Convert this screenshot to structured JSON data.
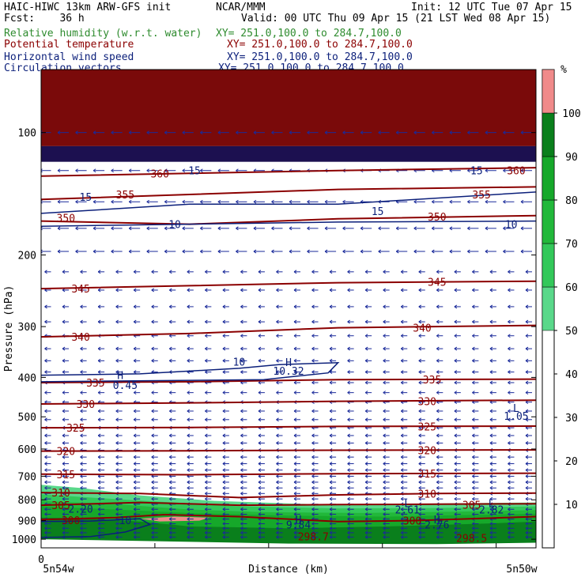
{
  "header": {
    "line1_left": "HAIC-HIWC 13km ARW-GFS init",
    "line1_mid": "NCAR/MMM",
    "line1_right": "Init: 12 UTC Tue 07 Apr 15",
    "line2_left": "Fcst:    36 h",
    "line2_right": "Valid: 00 UTC Thu 09 Apr 15 (21 LST Wed 08 Apr 15)",
    "fields": [
      {
        "name": "Relative humidity (w.r.t. water)",
        "xy": "XY= 251.0,100.0 to 284.7,100.0",
        "color": "#2e8b2e"
      },
      {
        "name": "Potential temperature",
        "xy": "XY= 251.0,100.0 to 284.7,100.0",
        "color": "#8b0000"
      },
      {
        "name": "Horizontal wind speed",
        "xy": "XY= 251.0,100.0 to 284.7,100.0",
        "color": "#0b1f7a"
      },
      {
        "name": "Circulation vectors",
        "xy": "XY= 251.0,100.0 to 284.7,100.0",
        "color": "#0b1f7a"
      }
    ]
  },
  "chart_data": {
    "type": "cross-section",
    "ylabel": "Pressure (hPa)",
    "xlabel": "Distance (km)",
    "x_tick_label": "0",
    "x_left_label": "5n54w",
    "x_right_label": "5n50w",
    "y_ticks": [
      100,
      200,
      300,
      400,
      500,
      600,
      700,
      800,
      900,
      1000
    ],
    "y_scale": "log",
    "ylim": [
      1050,
      70
    ],
    "x_range": [
      0,
      100
    ],
    "colorbar": {
      "unit": "%",
      "ticks": [
        10,
        20,
        30,
        40,
        50,
        60,
        70,
        80,
        90,
        100
      ],
      "bands": [
        {
          "from": 50,
          "to": 60,
          "color": "#5ad88a"
        },
        {
          "from": 60,
          "to": 70,
          "color": "#33c85a"
        },
        {
          "from": 70,
          "to": 80,
          "color": "#22b83a"
        },
        {
          "from": 80,
          "to": 90,
          "color": "#16a82a"
        },
        {
          "from": 90,
          "to": 100,
          "color": "#0a7f1c"
        },
        {
          "from": 100,
          "to": 110,
          "color": "#f08a8a"
        }
      ]
    },
    "theta_contours": [
      {
        "label": "305",
        "points": [
          [
            0,
            825
          ],
          [
            20,
            812
          ],
          [
            40,
            825
          ],
          [
            60,
            822
          ],
          [
            80,
            820
          ],
          [
            100,
            818
          ]
        ]
      },
      {
        "label": "310",
        "points": [
          [
            0,
            768
          ],
          [
            20,
            772
          ],
          [
            40,
            790
          ],
          [
            60,
            778
          ],
          [
            80,
            772
          ],
          [
            100,
            770
          ]
        ]
      },
      {
        "label": "315",
        "points": [
          [
            0,
            692
          ],
          [
            30,
            694
          ],
          [
            60,
            690
          ],
          [
            100,
            688
          ]
        ]
      },
      {
        "label": "320",
        "points": [
          [
            0,
            607
          ],
          [
            30,
            606
          ],
          [
            60,
            604
          ],
          [
            100,
            603
          ]
        ]
      },
      {
        "label": "325",
        "points": [
          [
            0,
            532
          ],
          [
            30,
            531
          ],
          [
            60,
            528
          ],
          [
            100,
            527
          ]
        ]
      },
      {
        "label": "330",
        "points": [
          [
            0,
            465
          ],
          [
            30,
            462
          ],
          [
            60,
            458
          ],
          [
            100,
            455
          ]
        ]
      },
      {
        "label": "335",
        "points": [
          [
            0,
            412
          ],
          [
            30,
            410
          ],
          [
            60,
            405
          ],
          [
            100,
            404
          ]
        ]
      },
      {
        "label": "340",
        "points": [
          [
            0,
            318
          ],
          [
            30,
            312
          ],
          [
            60,
            302
          ],
          [
            100,
            298
          ]
        ]
      },
      {
        "label": "345",
        "points": [
          [
            0,
            242
          ],
          [
            30,
            238
          ],
          [
            60,
            234
          ],
          [
            100,
            232
          ]
        ]
      },
      {
        "label": "350",
        "points": [
          [
            0,
            165
          ],
          [
            30,
            168
          ],
          [
            60,
            163
          ],
          [
            100,
            160
          ]
        ]
      },
      {
        "label": "355",
        "points": [
          [
            0,
            146
          ],
          [
            30,
            142
          ],
          [
            60,
            138
          ],
          [
            100,
            136
          ]
        ]
      },
      {
        "label": "360",
        "points": [
          [
            0,
            128
          ],
          [
            30,
            126
          ],
          [
            60,
            124
          ],
          [
            100,
            122
          ]
        ]
      },
      {
        "label": "300",
        "points": [
          [
            0,
            895
          ],
          [
            15,
            885
          ],
          [
            25,
            870
          ],
          [
            40,
            880
          ],
          [
            60,
            905
          ],
          [
            75,
            900
          ],
          [
            100,
            880
          ]
        ]
      }
    ],
    "theta_labels": [
      {
        "text": "360",
        "x": 24,
        "p": 126
      },
      {
        "text": "355",
        "x": 17,
        "p": 142
      },
      {
        "text": "350",
        "x": 5,
        "p": 162
      },
      {
        "text": "355",
        "x": 89,
        "p": 142
      },
      {
        "text": "360",
        "x": 96,
        "p": 124
      },
      {
        "text": "350",
        "x": 80,
        "p": 161
      },
      {
        "text": "345",
        "x": 8,
        "p": 242
      },
      {
        "text": "345",
        "x": 80,
        "p": 233
      },
      {
        "text": "340",
        "x": 8,
        "p": 318
      },
      {
        "text": "340",
        "x": 77,
        "p": 302
      },
      {
        "text": "335",
        "x": 11,
        "p": 412
      },
      {
        "text": "335",
        "x": 79,
        "p": 405
      },
      {
        "text": "330",
        "x": 9,
        "p": 465
      },
      {
        "text": "330",
        "x": 78,
        "p": 458
      },
      {
        "text": "325",
        "x": 7,
        "p": 532
      },
      {
        "text": "325",
        "x": 78,
        "p": 528
      },
      {
        "text": "320",
        "x": 5,
        "p": 607
      },
      {
        "text": "320",
        "x": 78,
        "p": 604
      },
      {
        "text": "315",
        "x": 5,
        "p": 692
      },
      {
        "text": "315",
        "x": 78,
        "p": 690
      },
      {
        "text": "310",
        "x": 4,
        "p": 768
      },
      {
        "text": "310",
        "x": 78,
        "p": 772
      },
      {
        "text": "305",
        "x": 4,
        "p": 825
      },
      {
        "text": "305",
        "x": 87,
        "p": 822
      },
      {
        "text": "300",
        "x": 6,
        "p": 898
      },
      {
        "text": "300",
        "x": 75,
        "p": 900
      },
      {
        "text": "298.7",
        "x": 55,
        "p": 985
      },
      {
        "text": "298.5",
        "x": 87,
        "p": 993
      }
    ],
    "wind_labels": [
      {
        "text": "15",
        "x": 31,
        "p": 124
      },
      {
        "text": "15",
        "x": 9,
        "p": 144
      },
      {
        "text": "15",
        "x": 68,
        "p": 156
      },
      {
        "text": "15",
        "x": 88,
        "p": 124
      },
      {
        "text": "10",
        "x": 27,
        "p": 168
      },
      {
        "text": "10",
        "x": 95,
        "p": 168
      },
      {
        "text": "10",
        "x": 40,
        "p": 366
      },
      {
        "text": "10",
        "x": 17,
        "p": 898
      }
    ],
    "extrema": [
      {
        "kind": "H",
        "x": 16,
        "p": 395
      },
      {
        "text": "0.45",
        "x": 17,
        "p": 418
      },
      {
        "kind": "H",
        "x": 50,
        "p": 367
      },
      {
        "text": "10.32",
        "x": 50,
        "p": 385
      },
      {
        "kind": "L",
        "x": 96,
        "p": 475
      },
      {
        "text": "1.05",
        "x": 96,
        "p": 497
      },
      {
        "text": "2.20",
        "x": 8,
        "p": 842
      },
      {
        "kind": "L",
        "x": 74,
        "p": 815
      },
      {
        "text": "2.61",
        "x": 74,
        "p": 845
      },
      {
        "kind": "L",
        "x": 91,
        "p": 815
      },
      {
        "text": "2.82",
        "x": 91,
        "p": 845
      },
      {
        "kind": "H",
        "x": 52,
        "p": 893
      },
      {
        "text": "9.84",
        "x": 52,
        "p": 920
      },
      {
        "kind": "H",
        "x": 80,
        "p": 893
      },
      {
        "text": "2.76",
        "x": 80,
        "p": 920
      }
    ]
  }
}
